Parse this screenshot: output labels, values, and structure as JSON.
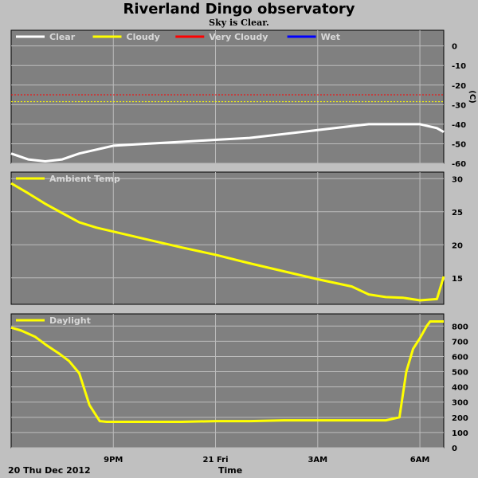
{
  "title": "Riverland Dingo observatory",
  "subtitle": "Sky is Clear.",
  "date_label": "20 Thu Dec 2012",
  "xlabel": "Time",
  "colors": {
    "panel_bg": "#808080",
    "grid": "#bcbcbc",
    "clear": "#ffffff",
    "cloudy": "#ffff00",
    "very_cloudy": "#ff0000",
    "wet": "#0000ff"
  },
  "chart_data": [
    {
      "type": "line",
      "name": "sky",
      "ylabel": "(C)",
      "ylim": [
        -60,
        8
      ],
      "yticks": [
        0,
        -10,
        -20,
        -30,
        -40,
        -50,
        -60
      ],
      "x_range": [
        18.0,
        30.7
      ],
      "thresholds": [
        {
          "label": "Very Cloudy",
          "value": -25,
          "color": "#ff0000"
        },
        {
          "label": "Cloudy",
          "value": -28.5,
          "color": "#ffff00"
        }
      ],
      "legend": [
        {
          "label": "Clear",
          "color": "#ffffff"
        },
        {
          "label": "Cloudy",
          "color": "#ffff00"
        },
        {
          "label": "Very Cloudy",
          "color": "#ff0000"
        },
        {
          "label": "Wet",
          "color": "#0000ff"
        }
      ],
      "series": [
        {
          "name": "Clear",
          "color": "#ffffff",
          "x": [
            18.0,
            18.5,
            19.0,
            19.5,
            20.0,
            20.5,
            21.0,
            22.0,
            23.0,
            24.0,
            25.0,
            26.0,
            27.0,
            28.0,
            28.5,
            29.0,
            29.5,
            30.0,
            30.5,
            30.7
          ],
          "y": [
            -55,
            -58,
            -59,
            -58,
            -55,
            -53,
            -51,
            -50,
            -49,
            -48,
            -47,
            -45,
            -43,
            -41,
            -40,
            -40,
            -40,
            -40,
            -42,
            -44
          ]
        }
      ]
    },
    {
      "type": "line",
      "name": "ambient",
      "ylim": [
        11,
        31
      ],
      "yticks": [
        30,
        25,
        20,
        15
      ],
      "x_range": [
        18.0,
        30.7
      ],
      "legend": [
        {
          "label": "Ambient Temp",
          "color": "#ffff00"
        }
      ],
      "series": [
        {
          "name": "Ambient Temp",
          "color": "#ffff00",
          "x": [
            18.0,
            18.5,
            19.0,
            19.5,
            20.0,
            20.5,
            21.0,
            22.0,
            23.0,
            24.0,
            25.0,
            26.0,
            27.0,
            28.0,
            28.5,
            29.0,
            29.5,
            30.0,
            30.5,
            30.7
          ],
          "y": [
            29.3,
            27.8,
            26.2,
            24.8,
            23.4,
            22.6,
            22.0,
            20.8,
            19.6,
            18.5,
            17.2,
            16.0,
            14.8,
            13.7,
            12.5,
            12.1,
            12.0,
            11.6,
            11.8,
            15.2
          ]
        }
      ]
    },
    {
      "type": "line",
      "name": "daylight",
      "ylim": [
        0,
        880
      ],
      "yticks": [
        800,
        700,
        600,
        500,
        400,
        300,
        200,
        100,
        0
      ],
      "x_range": [
        18.0,
        30.7
      ],
      "xticks": [
        {
          "x": 21.0,
          "label": "9PM"
        },
        {
          "x": 24.0,
          "label": "21 Fri"
        },
        {
          "x": 27.0,
          "label": "3AM"
        },
        {
          "x": 30.0,
          "label": "6AM"
        }
      ],
      "legend": [
        {
          "label": "Daylight",
          "color": "#ffff00"
        }
      ],
      "series": [
        {
          "name": "Daylight",
          "color": "#ffff00",
          "x": [
            18.0,
            18.3,
            18.7,
            19.0,
            19.4,
            19.7,
            20.0,
            20.3,
            20.6,
            20.8,
            21.0,
            22.0,
            23.0,
            24.0,
            25.0,
            26.0,
            27.0,
            28.0,
            29.0,
            29.4,
            29.6,
            29.8,
            30.0,
            30.2,
            30.3,
            30.5,
            30.7
          ],
          "y": [
            790,
            770,
            730,
            680,
            620,
            570,
            490,
            280,
            175,
            170,
            170,
            170,
            170,
            175,
            175,
            180,
            180,
            180,
            180,
            200,
            500,
            650,
            720,
            800,
            830,
            830,
            830
          ]
        }
      ]
    }
  ]
}
